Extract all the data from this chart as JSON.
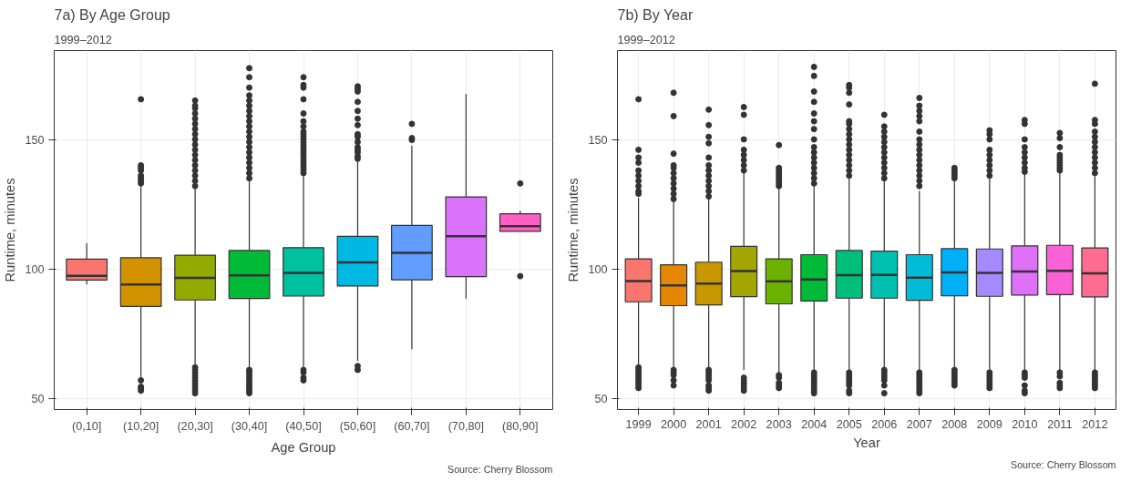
{
  "chart_data": [
    {
      "type": "box",
      "title": "7a) By Age Group",
      "subtitle": "1999–2012",
      "xlabel": "Age Group",
      "ylabel": "Runtime, minutes",
      "annotations": [
        "Source: Cherry Blossom"
      ],
      "grid": true,
      "ylim": [
        45.7,
        184.3
      ],
      "yticks": [
        50,
        100,
        150
      ],
      "categories": [
        "(0,10]",
        "(10,20]",
        "(20,30]",
        "(30,40]",
        "(40,50]",
        "(50,60]",
        "(60,70]",
        "(70,80]",
        "(80,90]"
      ],
      "colors": [
        "#F8766D",
        "#D39200",
        "#93AA00",
        "#00BA38",
        "#00C19F",
        "#00B9E3",
        "#619CFF",
        "#DB72FB",
        "#FF61C3"
      ],
      "boxes": [
        {
          "low": 94,
          "q1": 95.7,
          "median": 97.3,
          "q3": 103.8,
          "high": 110
        },
        {
          "low": 58,
          "q1": 85.5,
          "median": 94,
          "q3": 104.3,
          "high": 132,
          "outliers": [
            53,
            54,
            54.5,
            57,
            133,
            134,
            135,
            136,
            138,
            139,
            140,
            165.5
          ]
        },
        {
          "low": 63,
          "q1": 88,
          "median": 96.5,
          "q3": 105.3,
          "high": 131,
          "outliers": [
            52,
            53,
            54,
            55,
            56,
            57,
            58,
            59,
            60,
            61,
            62,
            132,
            134,
            136,
            138,
            140,
            142,
            144,
            146,
            148,
            150,
            152,
            154,
            156,
            158,
            160,
            162,
            163,
            165
          ]
        },
        {
          "low": 61.5,
          "q1": 88.6,
          "median": 97.5,
          "q3": 107.1,
          "high": 134,
          "outliers": [
            52,
            53,
            54,
            55,
            56,
            57,
            58,
            59,
            60,
            61,
            135,
            137,
            139,
            141,
            143,
            145,
            147,
            149,
            151,
            153,
            155,
            157,
            159,
            161,
            163,
            165,
            167,
            170,
            174,
            177.5
          ]
        },
        {
          "low": 62,
          "q1": 89.5,
          "median": 98.5,
          "q3": 108.2,
          "high": 136,
          "outliers": [
            57,
            58,
            60,
            61,
            137,
            138,
            139,
            140,
            141,
            142,
            143,
            144,
            145,
            146,
            147,
            148,
            149,
            150,
            151,
            152,
            153,
            155,
            157,
            160,
            165.5,
            170,
            171,
            174
          ]
        },
        {
          "low": 64.5,
          "q1": 93.4,
          "median": 102.5,
          "q3": 112.6,
          "high": 141.5,
          "outliers": [
            61,
            62.5,
            142.5,
            143.5,
            145,
            146,
            147,
            149,
            151,
            152,
            155.5,
            158,
            161,
            164.5,
            168.5,
            169.5,
            170.5
          ]
        },
        {
          "low": 69,
          "q1": 95.8,
          "median": 106.2,
          "q3": 116.8,
          "high": 147.5,
          "outliers": [
            149.8,
            150.5,
            156
          ]
        },
        {
          "low": 88.5,
          "q1": 97,
          "median": 112.6,
          "q3": 127.8,
          "high": 167.5
        },
        {
          "low": 114.5,
          "q1": 114.5,
          "median": 116.5,
          "q3": 121.3,
          "high": 122.5,
          "outliers": [
            97.2,
            133
          ]
        }
      ]
    },
    {
      "type": "box",
      "title": "7b) By Year",
      "subtitle": "1999–2012",
      "xlabel": "Year",
      "ylabel": "Runtime, minutes",
      "annotations": [
        "Source: Cherry Blossom"
      ],
      "grid": true,
      "ylim": [
        45.7,
        184.3
      ],
      "yticks": [
        50,
        100,
        150
      ],
      "categories": [
        "1999",
        "2000",
        "2001",
        "2002",
        "2003",
        "2004",
        "2005",
        "2006",
        "2007",
        "2008",
        "2009",
        "2010",
        "2011",
        "2012"
      ],
      "colors": [
        "#F8766D",
        "#E58700",
        "#C99800",
        "#A3A500",
        "#6BB100",
        "#00BA38",
        "#00BF7D",
        "#00C0AF",
        "#00BCD8",
        "#00B0F6",
        "#A58AFF",
        "#DF70F8",
        "#FB61D7",
        "#FF6C91"
      ],
      "boxes": [
        {
          "low": 62.5,
          "q1": 87.3,
          "median": 95.3,
          "q3": 103.9,
          "high": 127.5,
          "outliers": [
            54,
            55,
            56,
            57,
            58,
            59,
            60,
            61,
            62,
            129,
            130,
            132,
            134,
            136,
            138,
            141,
            143,
            146,
            165.5
          ]
        },
        {
          "low": 62,
          "q1": 85.8,
          "median": 93.6,
          "q3": 101.6,
          "high": 126,
          "outliers": [
            55,
            57,
            59,
            60,
            61,
            127,
            129,
            131,
            133,
            135,
            137,
            139,
            140,
            144.5,
            159,
            168
          ]
        },
        {
          "low": 61.5,
          "q1": 86.1,
          "median": 94.3,
          "q3": 102.6,
          "high": 127.5,
          "outliers": [
            53,
            54,
            55,
            57,
            58,
            59,
            60,
            61,
            128,
            130,
            132,
            134,
            136,
            138,
            140,
            143,
            148.5,
            151,
            155.5,
            161.5
          ]
        },
        {
          "low": 61,
          "q1": 89.3,
          "median": 99.2,
          "q3": 108.7,
          "high": 137.5,
          "outliers": [
            53,
            54,
            55,
            56,
            57,
            58,
            138,
            140,
            142,
            144,
            146,
            150,
            159.5,
            162.5
          ]
        },
        {
          "low": 60,
          "q1": 86.5,
          "median": 95.2,
          "q3": 103.9,
          "high": 131,
          "outliers": [
            54,
            55,
            56,
            58,
            59,
            132,
            133,
            134,
            135,
            136,
            137,
            138,
            139,
            147.8
          ]
        },
        {
          "low": 61,
          "q1": 87.6,
          "median": 95.9,
          "q3": 105.5,
          "high": 132,
          "outliers": [
            52,
            53,
            54,
            55,
            56,
            57,
            58,
            59,
            60,
            133,
            135,
            137,
            139,
            141,
            143,
            145,
            147,
            150,
            154,
            157,
            160,
            164.5,
            168.5,
            174.5,
            178
          ]
        },
        {
          "low": 61,
          "q1": 88.7,
          "median": 97.6,
          "q3": 107.1,
          "high": 135,
          "outliers": [
            52,
            53,
            55,
            56,
            57,
            58,
            59,
            60,
            136,
            138,
            140,
            142,
            144,
            146,
            148,
            150,
            152,
            154,
            156,
            157,
            163.5,
            168,
            170,
            171
          ]
        },
        {
          "low": 62,
          "q1": 88.7,
          "median": 97.7,
          "q3": 106.9,
          "high": 134.5,
          "outliers": [
            52,
            55,
            57,
            58,
            59,
            60,
            61,
            135,
            137,
            139,
            141,
            143,
            145,
            147,
            149,
            151,
            153,
            155,
            159.5
          ]
        },
        {
          "low": 61,
          "q1": 87.9,
          "median": 96.6,
          "q3": 105.5,
          "high": 130,
          "outliers": [
            52,
            53,
            54,
            55,
            56,
            57,
            58,
            59,
            60,
            132,
            134,
            136,
            138,
            140,
            142,
            144,
            146,
            148,
            150,
            153,
            157,
            159,
            161,
            163,
            166
          ]
        },
        {
          "low": 62,
          "q1": 89.6,
          "median": 98.6,
          "q3": 107.8,
          "high": 134,
          "outliers": [
            55,
            56,
            57,
            58,
            59,
            60,
            61,
            135,
            136,
            137,
            138,
            139
          ]
        },
        {
          "low": 61,
          "q1": 89.4,
          "median": 98.5,
          "q3": 107.7,
          "high": 135,
          "outliers": [
            54,
            55,
            56,
            57,
            58,
            59,
            60,
            136,
            138,
            140,
            142,
            144,
            146,
            150,
            152,
            153.5
          ]
        },
        {
          "low": 61,
          "q1": 89.9,
          "median": 99,
          "q3": 108.9,
          "high": 136.5,
          "outliers": [
            52,
            53,
            55,
            58,
            59,
            60,
            137.5,
            139,
            141,
            143,
            145,
            147,
            150,
            156,
            157.5
          ]
        },
        {
          "low": 61,
          "q1": 90.1,
          "median": 99.3,
          "q3": 109.1,
          "high": 137,
          "outliers": [
            54,
            55,
            56,
            58.5,
            60,
            138,
            139,
            140,
            141,
            142,
            143,
            144,
            147,
            150.5,
            152.5
          ]
        },
        {
          "low": 61,
          "q1": 89.2,
          "median": 98.3,
          "q3": 108.1,
          "high": 136,
          "outliers": [
            54,
            55,
            56,
            57,
            58,
            59,
            60,
            137,
            139,
            141,
            143,
            145,
            147,
            149,
            151,
            153,
            156,
            157.5,
            171.5
          ]
        }
      ]
    }
  ]
}
